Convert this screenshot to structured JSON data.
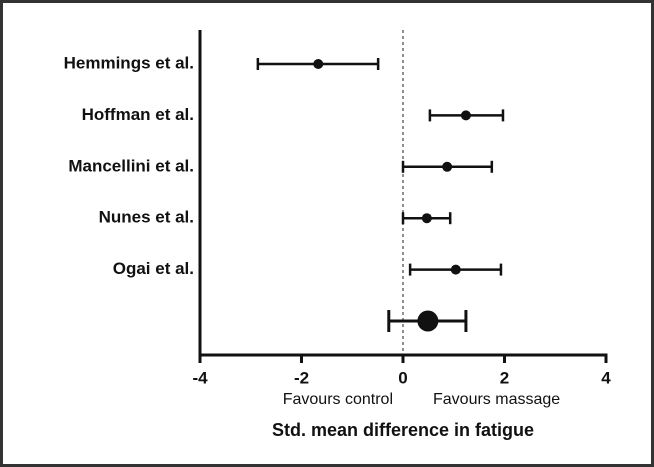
{
  "chart_data": {
    "type": "forest",
    "categories": [
      "Hemmings et al.",
      "Hoffman et al.",
      "Mancellini et al.",
      "Nunes et al.",
      "Ogai et al.",
      null
    ],
    "values": [
      -1.67,
      1.24,
      0.87,
      0.47,
      1.04,
      0.49
    ],
    "ci_low": [
      -2.86,
      0.53,
      0.0,
      0.0,
      0.14,
      -0.28
    ],
    "ci_high": [
      -0.49,
      1.97,
      1.75,
      0.93,
      1.93,
      1.24
    ],
    "color": "#111111",
    "xlim": [
      -4,
      4
    ],
    "xticks": [
      -4,
      -2,
      0,
      2,
      4
    ],
    "reference_line": 0,
    "annotations": [
      "Favours control",
      "Favours massage"
    ],
    "xlabel": "Std. mean difference in fatigue"
  }
}
